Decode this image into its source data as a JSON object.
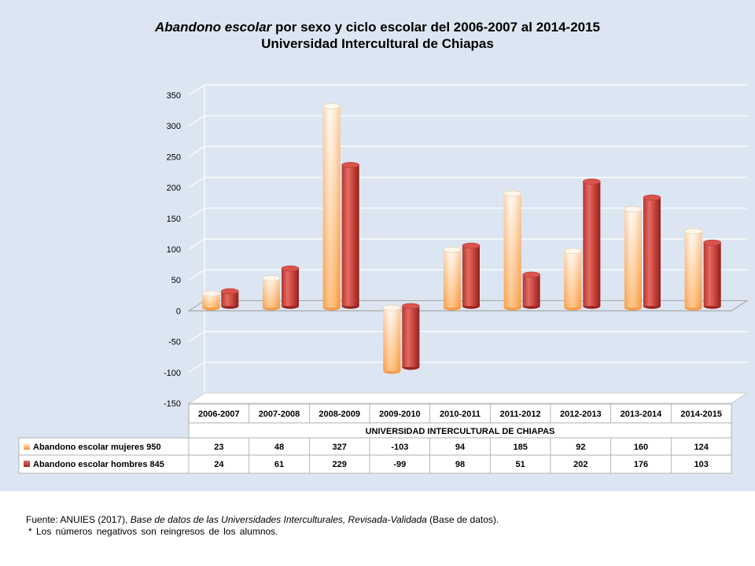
{
  "title": {
    "line1_italic": "Abandono escolar",
    "line1_rest": " por sexo y ciclo escolar del  2006-2007 al 2014-2015",
    "line2": "Universidad Intercultural de Chiapas"
  },
  "source": {
    "prefix": "Fuente: ANUIES (2017), ",
    "italic": "Base de datos de las Universidades  Interculturales, Revisada-Validada",
    "suffix": "  (Base de datos)."
  },
  "note": "* Los números  negativos  son reingresos de los alumnos.",
  "colors": {
    "background": "#dce6f2",
    "mujeres_light": "#fff2e0",
    "mujeres_dark": "#f5903a",
    "hombres_light": "#e06a63",
    "hombres_dark": "#a42a24"
  },
  "chart_data": {
    "type": "bar",
    "style": "3d-cylinder",
    "title": "Abandono escolar  por sexo y ciclo escolar del  2006-2007 al 2014-2015 Universidad Intercultural de Chiapas",
    "xlabel": "UNIVERSIDAD INTERCULTURAL DE CHIAPAS",
    "ylabel": "",
    "ylim": [
      -150,
      350
    ],
    "yticks": [
      350,
      300,
      250,
      200,
      150,
      100,
      50,
      0,
      -50,
      -100,
      -150
    ],
    "grid": true,
    "legend": "data-table",
    "categories": [
      "2006-2007",
      "2007-2008",
      "2008-2009",
      "2009-2010",
      "2010-2011",
      "2011-2012",
      "2012-2013",
      "2013-2014",
      "2014-2015"
    ],
    "series": [
      {
        "name": "Abandono escolar mujeres 950",
        "values": [
          23,
          48,
          327,
          -103,
          94,
          185,
          92,
          160,
          124
        ]
      },
      {
        "name": "Abandono escolar hombres 845",
        "values": [
          24,
          61,
          229,
          -99,
          98,
          51,
          202,
          176,
          103
        ]
      }
    ]
  }
}
